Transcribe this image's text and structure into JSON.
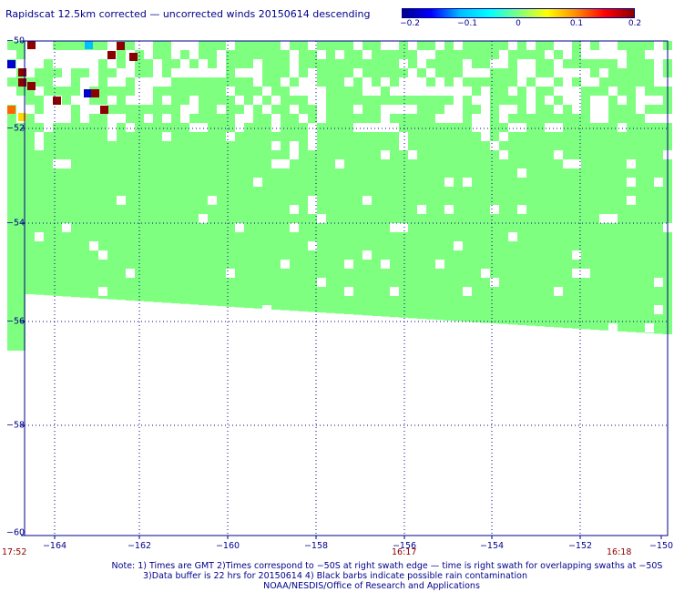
{
  "title": "Rapidscat 12.5km corrected — uncorrected winds 20150614 descending",
  "colorbar": {
    "ticks": [
      "−0.2",
      "−0.1",
      "0",
      "0.1",
      "0.2"
    ],
    "colors": [
      "#00008b",
      "#0000ff",
      "#00bfff",
      "#00ffff",
      "#7fff7f",
      "#ffff00",
      "#ff8c00",
      "#ff0000",
      "#8b0000"
    ]
  },
  "axes": {
    "lon_labels": [
      "−164",
      "−162",
      "−160",
      "−158",
      "−156",
      "−154",
      "−152",
      "−150"
    ],
    "lat_labels": [
      "−50",
      "−52",
      "−54",
      "−56",
      "−58",
      "−60"
    ],
    "lon_range": [
      -165,
      -150
    ],
    "lat_range": [
      -60,
      -50
    ]
  },
  "times": {
    "start": "17:52",
    "mid": "16:17",
    "end": "16:18"
  },
  "colors": {
    "near_zero": "#7fff7f",
    "text": "#00008b",
    "time_text": "#8b0000",
    "grid": "#00008b"
  },
  "notes": {
    "line1": "Note: 1) Times are GMT 2)Times correspond to −50S at right swath edge — time is right swath for overlapping swaths at −50S",
    "line2": "3)Data buffer is 22 hrs for 20150614 4) Black barbs indicate possible rain contamination",
    "line3": "NOAA/NESDIS/Office of Research and Applications"
  }
}
